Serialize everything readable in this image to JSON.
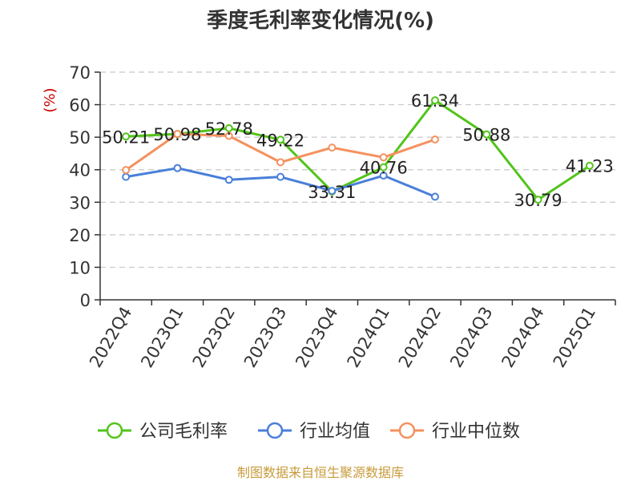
{
  "chart_data": {
    "type": "line",
    "title": "季度毛利率变化情况(%)",
    "ylabel": "(%)",
    "ylim": [
      0,
      70
    ],
    "yticks": [
      0,
      10,
      20,
      30,
      40,
      50,
      60,
      70
    ],
    "grid": true,
    "legend_position": "bottom",
    "categories": [
      "2022Q4",
      "2023Q1",
      "2023Q2",
      "2023Q3",
      "2023Q4",
      "2024Q1",
      "2024Q2",
      "2024Q3",
      "2024Q4",
      "2025Q1"
    ],
    "series": [
      {
        "name": "公司毛利率",
        "color": "#52c41a",
        "values": [
          50.21,
          50.98,
          52.78,
          49.22,
          33.31,
          40.76,
          61.34,
          50.88,
          30.79,
          41.23
        ],
        "labels": [
          "50.21",
          "50.98",
          "52.78",
          "49.22",
          "33.31",
          "40.76",
          "61.34",
          "50.88",
          "30.79",
          "41.23"
        ]
      },
      {
        "name": "行业均值",
        "color": "#4a7fd9",
        "values": [
          37.8,
          40.5,
          36.9,
          37.8,
          33.5,
          38.2,
          31.7,
          null,
          null,
          null
        ]
      },
      {
        "name": "行业中位数",
        "color": "#f5915e",
        "values": [
          39.9,
          51.0,
          50.4,
          42.3,
          46.8,
          43.8,
          49.3,
          null,
          null,
          null
        ]
      }
    ]
  },
  "ylabel_color": "#cc0000",
  "source": {
    "text": "制图数据来自恒生聚源数据库",
    "color": "#c89b3c"
  }
}
